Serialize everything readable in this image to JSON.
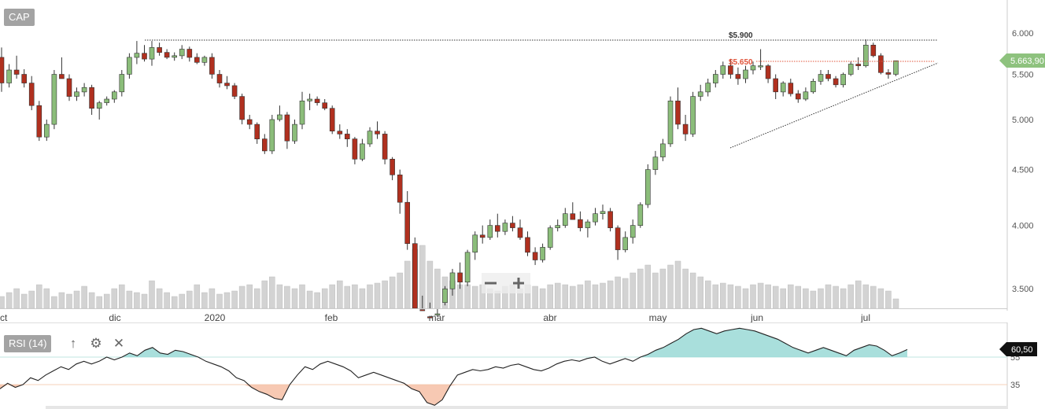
{
  "header": {
    "symbol": "CAP"
  },
  "rsi_panel": {
    "label": "RSI (14)",
    "up_icon": "↑",
    "gear_icon": "⚙",
    "close_icon": "✕"
  },
  "colors": {
    "up": "#8bbd7a",
    "down": "#b0301f",
    "volume": "#d3d3d3",
    "rsi_over": "#9ad9d6",
    "rsi_under": "#f6c0a6",
    "last_price": "#8ec27e"
  },
  "chart_data": [
    {
      "type": "candlestick",
      "title": "",
      "x_tick_labels": [
        "ct",
        "dic",
        "2020",
        "feb",
        "mar",
        "abr",
        "may",
        "jun",
        "jul"
      ],
      "y_tick_labels": [
        "6.000",
        "5.500",
        "5.000",
        "4.500",
        "4.000",
        "3.500"
      ],
      "y_ticks": [
        6.0,
        5.5,
        5.0,
        4.5,
        4.0,
        3.5
      ],
      "y_scale": "log",
      "ylim": [
        3.32,
        6.3
      ],
      "last_price": {
        "value": 5.6639,
        "label": "5.663,90"
      },
      "annotations": [
        {
          "text": "$5.900",
          "value": 5.9,
          "style": "dotted-black"
        },
        {
          "text": "$5.650",
          "value": 5.65,
          "style": "dotted-red"
        }
      ],
      "trendline": {
        "from": {
          "date": "2020-05-25",
          "value": 4.72
        },
        "to": {
          "date": "2020-07-20",
          "value": 5.6
        }
      },
      "candles_ohlc_approx": [
        [
          5.7,
          5.82,
          5.3,
          5.4
        ],
        [
          5.4,
          5.62,
          5.35,
          5.55
        ],
        [
          5.55,
          5.72,
          5.45,
          5.5
        ],
        [
          5.5,
          5.56,
          5.35,
          5.4
        ],
        [
          5.4,
          5.48,
          5.1,
          5.15
        ],
        [
          5.15,
          5.2,
          4.78,
          4.82
        ],
        [
          4.82,
          5.0,
          4.78,
          4.95
        ],
        [
          4.95,
          5.55,
          4.9,
          5.5
        ],
        [
          5.5,
          5.7,
          5.45,
          5.45
        ],
        [
          5.45,
          5.5,
          5.2,
          5.25
        ],
        [
          5.25,
          5.35,
          5.2,
          5.3
        ],
        [
          5.3,
          5.4,
          5.25,
          5.35
        ],
        [
          5.35,
          5.38,
          5.05,
          5.12
        ],
        [
          5.12,
          5.2,
          5.0,
          5.18
        ],
        [
          5.18,
          5.25,
          5.15,
          5.22
        ],
        [
          5.22,
          5.32,
          5.18,
          5.3
        ],
        [
          5.3,
          5.55,
          5.25,
          5.5
        ],
        [
          5.5,
          5.75,
          5.45,
          5.7
        ],
        [
          5.7,
          5.9,
          5.62,
          5.75
        ],
        [
          5.75,
          5.85,
          5.65,
          5.68
        ],
        [
          5.68,
          5.9,
          5.6,
          5.82
        ],
        [
          5.82,
          5.88,
          5.72,
          5.76
        ],
        [
          5.76,
          5.8,
          5.68,
          5.7
        ],
        [
          5.7,
          5.76,
          5.66,
          5.72
        ],
        [
          5.72,
          5.85,
          5.68,
          5.8
        ],
        [
          5.8,
          5.83,
          5.65,
          5.7
        ],
        [
          5.7,
          5.75,
          5.62,
          5.64
        ],
        [
          5.64,
          5.72,
          5.6,
          5.7
        ],
        [
          5.7,
          5.75,
          5.45,
          5.5
        ],
        [
          5.5,
          5.55,
          5.35,
          5.4
        ],
        [
          5.4,
          5.48,
          5.33,
          5.37
        ],
        [
          5.37,
          5.4,
          5.22,
          5.25
        ],
        [
          5.25,
          5.28,
          4.95,
          5.0
        ],
        [
          5.0,
          5.05,
          4.9,
          4.95
        ],
        [
          4.95,
          4.97,
          4.75,
          4.8
        ],
        [
          4.8,
          4.85,
          4.65,
          4.68
        ],
        [
          4.68,
          5.05,
          4.65,
          5.0
        ],
        [
          5.0,
          5.15,
          4.98,
          5.05
        ],
        [
          5.05,
          5.08,
          4.7,
          4.78
        ],
        [
          4.78,
          5.0,
          4.75,
          4.95
        ],
        [
          4.95,
          5.3,
          4.9,
          5.2
        ],
        [
          5.2,
          5.28,
          5.1,
          5.22
        ],
        [
          5.22,
          5.25,
          5.15,
          5.18
        ],
        [
          5.18,
          5.22,
          5.1,
          5.12
        ],
        [
          5.12,
          5.15,
          4.85,
          4.88
        ],
        [
          4.88,
          4.95,
          4.8,
          4.85
        ],
        [
          4.85,
          4.9,
          4.72,
          4.8
        ],
        [
          4.8,
          4.82,
          4.55,
          4.6
        ],
        [
          4.6,
          4.8,
          4.58,
          4.75
        ],
        [
          4.75,
          4.92,
          4.72,
          4.88
        ],
        [
          4.88,
          4.98,
          4.8,
          4.85
        ],
        [
          4.85,
          4.88,
          4.55,
          4.6
        ],
        [
          4.6,
          4.62,
          4.4,
          4.45
        ],
        [
          4.45,
          4.5,
          4.1,
          4.2
        ],
        [
          4.2,
          4.3,
          3.8,
          3.85
        ],
        [
          3.85,
          3.9,
          3.32,
          3.35
        ],
        [
          3.35,
          3.45,
          3.25,
          3.3
        ],
        [
          3.3,
          3.4,
          3.2,
          3.25
        ],
        [
          3.25,
          3.3,
          3.3,
          3.32
        ],
        [
          3.4,
          3.52,
          3.38,
          3.5
        ],
        [
          3.5,
          3.65,
          3.45,
          3.62
        ],
        [
          3.62,
          3.7,
          3.5,
          3.55
        ],
        [
          3.55,
          3.8,
          3.52,
          3.78
        ],
        [
          3.78,
          3.95,
          3.72,
          3.92
        ],
        [
          3.92,
          4.0,
          3.85,
          3.9
        ],
        [
          3.9,
          4.05,
          3.88,
          4.0
        ],
        [
          4.0,
          4.1,
          3.9,
          3.95
        ],
        [
          3.95,
          4.05,
          3.92,
          4.02
        ],
        [
          4.02,
          4.08,
          3.95,
          3.98
        ],
        [
          3.98,
          4.05,
          3.88,
          3.9
        ],
        [
          3.9,
          3.95,
          3.75,
          3.78
        ],
        [
          3.78,
          3.82,
          3.68,
          3.72
        ],
        [
          3.72,
          3.85,
          3.7,
          3.82
        ],
        [
          3.82,
          4.0,
          3.8,
          3.98
        ],
        [
          3.98,
          4.05,
          3.95,
          4.0
        ],
        [
          4.0,
          4.15,
          3.98,
          4.1
        ],
        [
          4.1,
          4.2,
          4.05,
          4.05
        ],
        [
          4.05,
          4.12,
          3.95,
          3.98
        ],
        [
          3.98,
          4.05,
          3.9,
          4.03
        ],
        [
          4.03,
          4.15,
          4.0,
          4.1
        ],
        [
          4.1,
          4.18,
          4.05,
          4.12
        ],
        [
          4.12,
          4.15,
          3.95,
          3.98
        ],
        [
          3.98,
          4.0,
          3.72,
          3.8
        ],
        [
          3.8,
          3.95,
          3.78,
          3.9
        ],
        [
          3.9,
          4.05,
          3.85,
          4.0
        ],
        [
          4.0,
          4.2,
          3.98,
          4.18
        ],
        [
          4.18,
          4.55,
          4.15,
          4.5
        ],
        [
          4.5,
          4.68,
          4.45,
          4.62
        ],
        [
          4.62,
          4.8,
          4.58,
          4.75
        ],
        [
          4.75,
          5.25,
          4.72,
          5.2
        ],
        [
          5.2,
          5.35,
          4.9,
          4.95
        ],
        [
          4.95,
          5.05,
          4.78,
          4.85
        ],
        [
          4.85,
          5.3,
          4.82,
          5.25
        ],
        [
          5.25,
          5.38,
          5.2,
          5.3
        ],
        [
          5.3,
          5.45,
          5.25,
          5.4
        ],
        [
          5.4,
          5.55,
          5.35,
          5.5
        ],
        [
          5.5,
          5.65,
          5.45,
          5.6
        ],
        [
          5.6,
          5.68,
          5.45,
          5.5
        ],
        [
          5.5,
          5.58,
          5.38,
          5.45
        ],
        [
          5.45,
          5.6,
          5.4,
          5.55
        ],
        [
          5.55,
          5.65,
          5.5,
          5.6
        ],
        [
          5.6,
          5.8,
          5.55,
          5.6
        ],
        [
          5.6,
          5.62,
          5.4,
          5.45
        ],
        [
          5.45,
          5.5,
          5.22,
          5.3
        ],
        [
          5.3,
          5.42,
          5.25,
          5.4
        ],
        [
          5.4,
          5.45,
          5.25,
          5.28
        ],
        [
          5.28,
          5.32,
          5.18,
          5.22
        ],
        [
          5.22,
          5.35,
          5.2,
          5.3
        ],
        [
          5.3,
          5.45,
          5.28,
          5.42
        ],
        [
          5.42,
          5.55,
          5.38,
          5.5
        ],
        [
          5.5,
          5.55,
          5.42,
          5.45
        ],
        [
          5.45,
          5.48,
          5.35,
          5.38
        ],
        [
          5.38,
          5.52,
          5.35,
          5.5
        ],
        [
          5.5,
          5.65,
          5.48,
          5.62
        ],
        [
          5.62,
          5.7,
          5.55,
          5.6
        ],
        [
          5.6,
          5.92,
          5.58,
          5.85
        ],
        [
          5.85,
          5.88,
          5.7,
          5.72
        ],
        [
          5.72,
          5.75,
          5.5,
          5.52
        ],
        [
          5.52,
          5.56,
          5.45,
          5.5
        ],
        [
          5.5,
          5.66,
          5.48,
          5.66
        ]
      ],
      "volume_relative": [
        0.15,
        0.2,
        0.25,
        0.18,
        0.22,
        0.3,
        0.25,
        0.15,
        0.2,
        0.18,
        0.22,
        0.28,
        0.2,
        0.15,
        0.18,
        0.25,
        0.3,
        0.22,
        0.2,
        0.18,
        0.35,
        0.25,
        0.2,
        0.15,
        0.18,
        0.22,
        0.3,
        0.2,
        0.25,
        0.18,
        0.2,
        0.22,
        0.28,
        0.3,
        0.25,
        0.35,
        0.4,
        0.3,
        0.28,
        0.25,
        0.3,
        0.22,
        0.2,
        0.25,
        0.3,
        0.35,
        0.28,
        0.3,
        0.25,
        0.3,
        0.32,
        0.35,
        0.4,
        0.45,
        0.6,
        0.75,
        0.8,
        0.6,
        0.5,
        0.4,
        0.35,
        0.3,
        0.3,
        0.28,
        0.3,
        0.25,
        0.22,
        0.28,
        0.3,
        0.25,
        0.3,
        0.28,
        0.25,
        0.3,
        0.32,
        0.3,
        0.28,
        0.3,
        0.35,
        0.3,
        0.32,
        0.35,
        0.4,
        0.38,
        0.45,
        0.5,
        0.55,
        0.45,
        0.5,
        0.55,
        0.6,
        0.5,
        0.45,
        0.4,
        0.35,
        0.3,
        0.32,
        0.3,
        0.28,
        0.25,
        0.3,
        0.32,
        0.3,
        0.28,
        0.25,
        0.3,
        0.28,
        0.25,
        0.22,
        0.25,
        0.3,
        0.28,
        0.25,
        0.3,
        0.35,
        0.3,
        0.28,
        0.25,
        0.22,
        0.12
      ]
    },
    {
      "type": "line",
      "title": "RSI (14)",
      "y_tick_labels": [
        "55",
        "35"
      ],
      "y_ticks": [
        55,
        35
      ],
      "ylim": [
        20,
        80
      ],
      "last_value": {
        "value": 60.5,
        "label": "60,50"
      },
      "values": [
        32,
        36,
        33,
        35,
        40,
        38,
        42,
        45,
        48,
        46,
        50,
        52,
        50,
        52,
        55,
        53,
        55,
        58,
        56,
        60,
        62,
        58,
        57,
        60,
        59,
        57,
        55,
        52,
        50,
        48,
        45,
        40,
        38,
        33,
        30,
        28,
        25,
        24,
        35,
        42,
        48,
        46,
        50,
        52,
        50,
        48,
        45,
        40,
        42,
        44,
        42,
        40,
        38,
        36,
        32,
        30,
        22,
        20,
        24,
        34,
        42,
        44,
        46,
        45,
        46,
        48,
        47,
        49,
        50,
        48,
        46,
        45,
        47,
        50,
        52,
        53,
        52,
        54,
        55,
        52,
        50,
        52,
        54,
        52,
        55,
        57,
        60,
        62,
        65,
        68,
        72,
        75,
        76,
        74,
        72,
        74,
        75,
        76,
        75,
        74,
        72,
        70,
        68,
        65,
        62,
        60,
        58,
        60,
        62,
        60,
        58,
        56,
        60,
        62,
        64,
        63,
        60,
        56,
        58,
        60.5
      ]
    }
  ]
}
